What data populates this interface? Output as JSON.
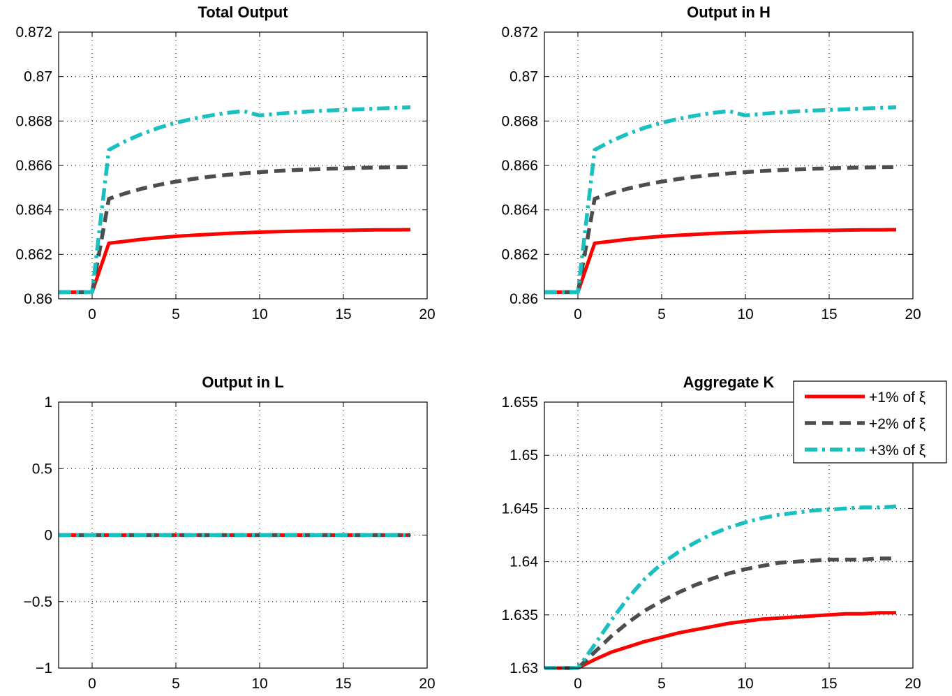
{
  "legend": {
    "entries": [
      {
        "label": "+1% of ξ",
        "color": "#ff0000",
        "style": "solid"
      },
      {
        "label": "+2% of ξ",
        "color": "#4d4d4d",
        "style": "dashed"
      },
      {
        "label": "+3% of ξ",
        "color": "#1abfbf",
        "style": "dashdot"
      }
    ],
    "placement": "top-right of Aggregate K panel"
  },
  "chart_data": [
    {
      "type": "line",
      "title": "Total Output",
      "xlim": [
        -2,
        20
      ],
      "ylim": [
        0.86,
        0.872
      ],
      "xticks": [
        "0",
        "5",
        "10",
        "15",
        "20"
      ],
      "yticks": [
        "0.86",
        "0.862",
        "0.864",
        "0.866",
        "0.868",
        "0.87",
        "0.872"
      ],
      "grid": true,
      "x": [
        -2,
        -1,
        0,
        1,
        2,
        3,
        4,
        5,
        6,
        7,
        8,
        9,
        10,
        11,
        12,
        13,
        14,
        15,
        16,
        17,
        18,
        19
      ],
      "series": [
        {
          "name": "+1% of ξ",
          "color": "#ff0000",
          "style": "solid",
          "values": [
            0.8603,
            0.8603,
            0.8603,
            0.8625,
            0.86259,
            0.86268,
            0.86275,
            0.86281,
            0.86286,
            0.8629,
            0.86294,
            0.86297,
            0.863,
            0.86302,
            0.86304,
            0.86306,
            0.86307,
            0.86308,
            0.86309,
            0.8631,
            0.8631,
            0.86311
          ]
        },
        {
          "name": "+2% of ξ",
          "color": "#4d4d4d",
          "style": "dashed",
          "values": [
            0.8603,
            0.8603,
            0.8603,
            0.8645,
            0.86475,
            0.86496,
            0.86513,
            0.86527,
            0.86539,
            0.86549,
            0.86557,
            0.86564,
            0.8657,
            0.86575,
            0.86579,
            0.86582,
            0.86585,
            0.86587,
            0.86589,
            0.86591,
            0.86592,
            0.86593
          ]
        },
        {
          "name": "+3% of ξ",
          "color": "#1abfbf",
          "style": "dashdot",
          "values": [
            0.8603,
            0.8603,
            0.8603,
            0.8667,
            0.8671,
            0.86743,
            0.8677,
            0.86792,
            0.8681,
            0.86824,
            0.86836,
            0.86845,
            0.86825,
            0.86832,
            0.86838,
            0.86843,
            0.86847,
            0.8685,
            0.86853,
            0.86856,
            0.86859,
            0.86862
          ]
        }
      ]
    },
    {
      "type": "line",
      "title": "Output in H",
      "xlim": [
        -2,
        20
      ],
      "ylim": [
        0.86,
        0.872
      ],
      "xticks": [
        "0",
        "5",
        "10",
        "15",
        "20"
      ],
      "yticks": [
        "0.86",
        "0.862",
        "0.864",
        "0.866",
        "0.868",
        "0.87",
        "0.872"
      ],
      "grid": true,
      "x": [
        -2,
        -1,
        0,
        1,
        2,
        3,
        4,
        5,
        6,
        7,
        8,
        9,
        10,
        11,
        12,
        13,
        14,
        15,
        16,
        17,
        18,
        19
      ],
      "series": [
        {
          "name": "+1% of ξ",
          "color": "#ff0000",
          "style": "solid",
          "values": [
            0.8603,
            0.8603,
            0.8603,
            0.8625,
            0.86259,
            0.86268,
            0.86275,
            0.86281,
            0.86286,
            0.8629,
            0.86294,
            0.86297,
            0.863,
            0.86302,
            0.86304,
            0.86306,
            0.86307,
            0.86308,
            0.86309,
            0.8631,
            0.8631,
            0.86311
          ]
        },
        {
          "name": "+2% of ξ",
          "color": "#4d4d4d",
          "style": "dashed",
          "values": [
            0.8603,
            0.8603,
            0.8603,
            0.8645,
            0.86475,
            0.86496,
            0.86513,
            0.86527,
            0.86539,
            0.86549,
            0.86557,
            0.86564,
            0.8657,
            0.86575,
            0.86579,
            0.86582,
            0.86585,
            0.86587,
            0.86589,
            0.86591,
            0.86592,
            0.86593
          ]
        },
        {
          "name": "+3% of ξ",
          "color": "#1abfbf",
          "style": "dashdot",
          "values": [
            0.8603,
            0.8603,
            0.8603,
            0.8667,
            0.8671,
            0.86743,
            0.8677,
            0.86792,
            0.8681,
            0.86824,
            0.86836,
            0.86845,
            0.86825,
            0.86832,
            0.86838,
            0.86843,
            0.86847,
            0.8685,
            0.86853,
            0.86856,
            0.86859,
            0.86862
          ]
        }
      ]
    },
    {
      "type": "line",
      "title": "Output in L",
      "xlim": [
        -2,
        20
      ],
      "ylim": [
        -1,
        1
      ],
      "xticks": [
        "0",
        "5",
        "10",
        "15",
        "20"
      ],
      "yticks": [
        "−1",
        "−0.5",
        "0",
        "0.5",
        "1"
      ],
      "grid": true,
      "x": [
        -2,
        -1,
        0,
        1,
        2,
        3,
        4,
        5,
        6,
        7,
        8,
        9,
        10,
        11,
        12,
        13,
        14,
        15,
        16,
        17,
        18,
        19
      ],
      "series": [
        {
          "name": "+1% of ξ",
          "color": "#ff0000",
          "style": "solid",
          "values": [
            0,
            0,
            0,
            0,
            0,
            0,
            0,
            0,
            0,
            0,
            0,
            0,
            0,
            0,
            0,
            0,
            0,
            0,
            0,
            0,
            0,
            0
          ]
        },
        {
          "name": "+2% of ξ",
          "color": "#4d4d4d",
          "style": "dashed",
          "values": [
            0,
            0,
            0,
            0,
            0,
            0,
            0,
            0,
            0,
            0,
            0,
            0,
            0,
            0,
            0,
            0,
            0,
            0,
            0,
            0,
            0,
            0
          ]
        },
        {
          "name": "+3% of ξ",
          "color": "#1abfbf",
          "style": "dashdot",
          "values": [
            0,
            0,
            0,
            0,
            0,
            0,
            0,
            0,
            0,
            0,
            0,
            0,
            0,
            0,
            0,
            0,
            0,
            0,
            0,
            0,
            0,
            0
          ]
        }
      ]
    },
    {
      "type": "line",
      "title": "Aggregate K",
      "xlim": [
        -2,
        20
      ],
      "ylim": [
        1.63,
        1.655
      ],
      "xticks": [
        "0",
        "5",
        "10",
        "15",
        "20"
      ],
      "yticks": [
        "1.63",
        "1.635",
        "1.64",
        "1.645",
        "1.65",
        "1.655"
      ],
      "grid": true,
      "x": [
        -2,
        -1,
        0,
        1,
        2,
        3,
        4,
        5,
        6,
        7,
        8,
        9,
        10,
        11,
        12,
        13,
        14,
        15,
        16,
        17,
        18,
        19
      ],
      "series": [
        {
          "name": "+1% of ξ",
          "color": "#ff0000",
          "style": "solid",
          "values": [
            1.63,
            1.63,
            1.63,
            1.6308,
            1.6315,
            1.632,
            1.6325,
            1.6329,
            1.6333,
            1.6336,
            1.6339,
            1.6342,
            1.6344,
            1.6346,
            1.6347,
            1.6348,
            1.6349,
            1.635,
            1.6351,
            1.6351,
            1.6352,
            1.6352
          ]
        },
        {
          "name": "+2% of ξ",
          "color": "#4d4d4d",
          "style": "dashed",
          "values": [
            1.63,
            1.63,
            1.63,
            1.6315,
            1.633,
            1.6343,
            1.6354,
            1.6363,
            1.6371,
            1.6378,
            1.6384,
            1.6389,
            1.6393,
            1.6396,
            1.6399,
            1.64,
            1.6401,
            1.6402,
            1.6402,
            1.6402,
            1.6403,
            1.6403
          ]
        },
        {
          "name": "+3% of ξ",
          "color": "#1abfbf",
          "style": "dashdot",
          "values": [
            1.63,
            1.63,
            1.63,
            1.6322,
            1.6345,
            1.6366,
            1.6384,
            1.6398,
            1.6409,
            1.6418,
            1.6426,
            1.6432,
            1.6437,
            1.6441,
            1.6444,
            1.6446,
            1.6448,
            1.6449,
            1.645,
            1.6451,
            1.6451,
            1.6452
          ]
        }
      ]
    }
  ]
}
